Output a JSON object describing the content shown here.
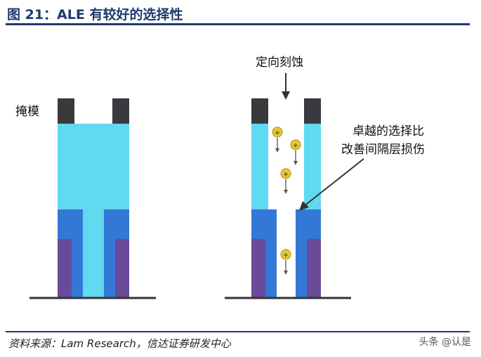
{
  "figure": {
    "title": "图 21：ALE 有较好的选择性"
  },
  "diagram": {
    "mask_label": "掩模",
    "etch_direction_label": "定向刻蚀",
    "callout_line1": "卓越的选择比",
    "callout_line2": "改善间隔层损伤"
  },
  "footer": {
    "source": "资料来源：Lam Research，信达证券研发中心",
    "watermark": "头条 @认是"
  },
  "colors": {
    "title_blue": "#1f3a6e",
    "mask": "#3a3a3e",
    "cyan_fill": "#5fdaf0",
    "spacer_blue": "#3478d6",
    "purple": "#6a4a9a",
    "ion_yellow": "#e8c832"
  }
}
